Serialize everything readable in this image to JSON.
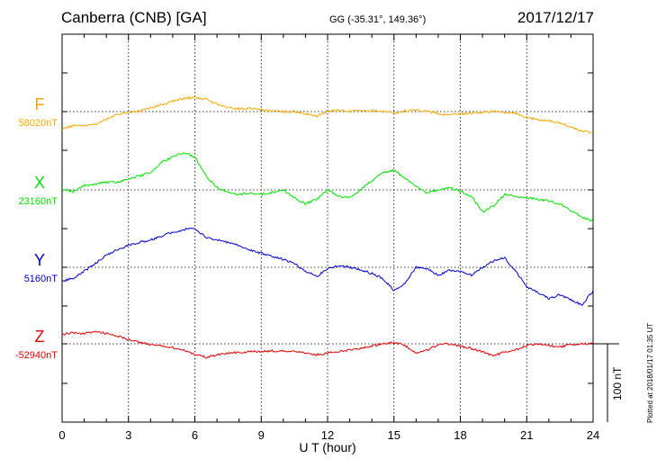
{
  "header": {
    "station": "Canberra (CNB)  [GA]",
    "coords": "GG (-35.31°, 149.36°)",
    "date": "2017/12/17"
  },
  "plotted_note": "Plotted at 2018/01/17 01:35 UT",
  "colors": {
    "F": "#f5a800",
    "X": "#00e000",
    "Y": "#0000cc",
    "Z": "#e00000"
  },
  "chart_data": {
    "type": "line",
    "xlabel": "U T (hour)",
    "xlim": [
      0,
      24
    ],
    "xticks": [
      "0",
      "3",
      "6",
      "9",
      "12",
      "15",
      "18",
      "21",
      "24"
    ],
    "scale_bar": "100 nT",
    "grid": true,
    "series": [
      {
        "name": "F",
        "baseline_label": "58020nT",
        "x": [
          0,
          0.5,
          1,
          1.5,
          2,
          2.5,
          3,
          3.5,
          4,
          4.5,
          5,
          5.5,
          6,
          6.5,
          7,
          7.5,
          8,
          8.5,
          9,
          9.5,
          10,
          10.5,
          11,
          11.5,
          12,
          12.5,
          13,
          13.5,
          14,
          14.5,
          15,
          15.5,
          16,
          16.5,
          17,
          17.5,
          18,
          18.5,
          19,
          19.5,
          20,
          20.5,
          21,
          21.5,
          22,
          22.5,
          23,
          23.5,
          24
        ],
        "values": [
          -22,
          -18,
          -18,
          -16,
          -10,
          -4,
          -1,
          1,
          5,
          9,
          13,
          17,
          18,
          16,
          9,
          5,
          4,
          4,
          2,
          1,
          0,
          0,
          -3,
          -6,
          0,
          2,
          0,
          1,
          1,
          0,
          -2,
          1,
          2,
          1,
          -3,
          -4,
          -3,
          -2,
          -1,
          0,
          -1,
          -2,
          -8,
          -10,
          -12,
          -14,
          -20,
          -25,
          -27
        ]
      },
      {
        "name": "X",
        "baseline_label": "23160nT",
        "x": [
          0,
          0.5,
          1,
          1.5,
          2,
          2.5,
          3,
          3.5,
          4,
          4.5,
          5,
          5.5,
          6,
          6.5,
          7,
          7.5,
          8,
          8.5,
          9,
          9.5,
          10,
          10.5,
          11,
          11.5,
          12,
          12.5,
          13,
          13.5,
          14,
          14.5,
          15,
          15.5,
          16,
          16.5,
          17,
          17.5,
          18,
          18.5,
          19,
          19.5,
          20,
          20.5,
          21,
          21.5,
          22,
          22.5,
          23,
          23.5,
          24
        ],
        "values": [
          0,
          -2,
          6,
          7,
          10,
          10,
          14,
          18,
          22,
          35,
          42,
          48,
          42,
          18,
          3,
          -3,
          -6,
          -4,
          -6,
          -3,
          0,
          -10,
          -18,
          -12,
          0,
          -8,
          -10,
          0,
          12,
          22,
          25,
          15,
          4,
          -4,
          0,
          3,
          -2,
          -8,
          -28,
          -20,
          -6,
          -8,
          -10,
          -12,
          -14,
          -18,
          -26,
          -35,
          -40
        ]
      },
      {
        "name": "Y",
        "baseline_label": "5160nT",
        "x": [
          0,
          0.5,
          1,
          1.5,
          2,
          2.5,
          3,
          3.5,
          4,
          4.5,
          5,
          5.5,
          6,
          6.5,
          7,
          7.5,
          8,
          8.5,
          9,
          9.5,
          10,
          10.5,
          11,
          11.5,
          12,
          12.5,
          13,
          13.5,
          14,
          14.5,
          15,
          15.5,
          16,
          16.5,
          17,
          17.5,
          18,
          18.5,
          19,
          19.5,
          20,
          20.5,
          21,
          21.5,
          22,
          22.5,
          23,
          23.5,
          24
        ],
        "values": [
          -18,
          -14,
          -5,
          5,
          16,
          22,
          28,
          32,
          35,
          40,
          45,
          48,
          50,
          38,
          35,
          32,
          28,
          22,
          18,
          14,
          10,
          5,
          -5,
          -12,
          -2,
          2,
          0,
          -3,
          -8,
          -14,
          -30,
          -20,
          0,
          -2,
          -10,
          -4,
          -5,
          -10,
          0,
          8,
          12,
          -5,
          -25,
          -32,
          -40,
          -35,
          -42,
          -48,
          -30
        ]
      },
      {
        "name": "Z",
        "baseline_label": "-52940nT",
        "x": [
          0,
          0.5,
          1,
          1.5,
          2,
          2.5,
          3,
          3.5,
          4,
          4.5,
          5,
          5.5,
          6,
          6.5,
          7,
          7.5,
          8,
          8.5,
          9,
          9.5,
          10,
          10.5,
          11,
          11.5,
          12,
          12.5,
          13,
          13.5,
          14,
          14.5,
          15,
          15.5,
          16,
          16.5,
          17,
          17.5,
          18,
          18.5,
          19,
          19.5,
          20,
          20.5,
          21,
          21.5,
          22,
          22.5,
          23,
          23.5,
          24
        ],
        "values": [
          12,
          14,
          13,
          16,
          13,
          10,
          5,
          2,
          -1,
          -3,
          -5,
          -8,
          -14,
          -17,
          -14,
          -12,
          -11,
          -10,
          -10,
          -9,
          -9,
          -10,
          -12,
          -14,
          -12,
          -10,
          -8,
          -6,
          -3,
          0,
          2,
          -2,
          -12,
          -8,
          -1,
          0,
          -3,
          -6,
          -10,
          -16,
          -10,
          -8,
          -2,
          0,
          -2,
          -4,
          -1,
          0,
          0
        ]
      }
    ]
  }
}
